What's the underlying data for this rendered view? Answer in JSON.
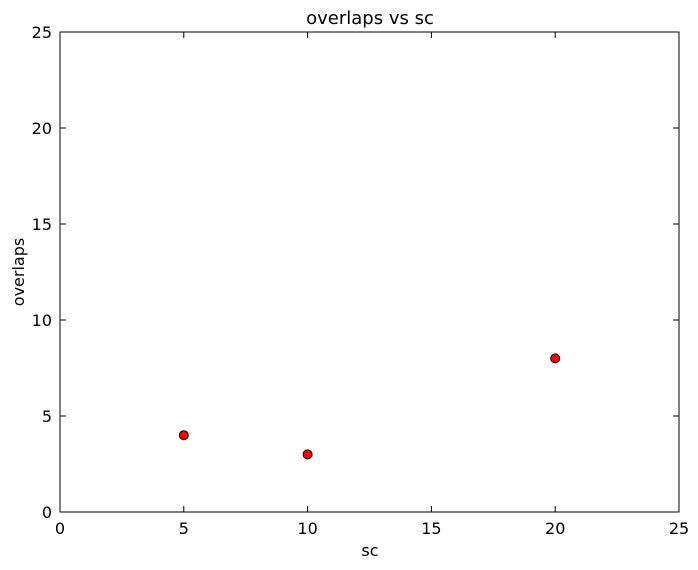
{
  "chart_data": {
    "type": "scatter",
    "title": "overlaps vs sc",
    "xlabel": "sc",
    "ylabel": "overlaps",
    "xlim": [
      0,
      25
    ],
    "ylim": [
      0,
      25
    ],
    "xticks": [
      0,
      5,
      10,
      15,
      20,
      25
    ],
    "yticks": [
      0,
      5,
      10,
      15,
      20,
      25
    ],
    "grid": false,
    "marker_color": "#ff0000",
    "marker_edge_color": "#000000",
    "series": [
      {
        "x": [
          5,
          10,
          20
        ],
        "y": [
          4,
          3,
          8
        ]
      }
    ]
  }
}
